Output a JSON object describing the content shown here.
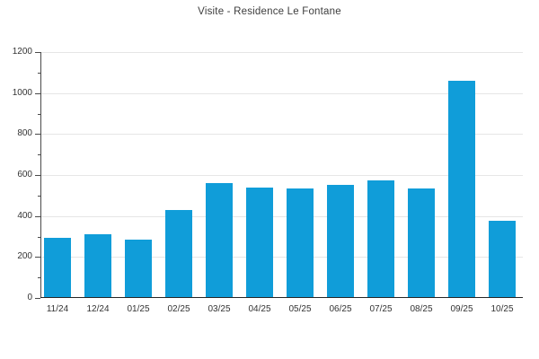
{
  "chart_data": {
    "type": "bar",
    "title": "Visite - Residence Le Fontane",
    "categories": [
      "11/24",
      "12/24",
      "01/25",
      "02/25",
      "03/25",
      "04/25",
      "05/25",
      "06/25",
      "07/25",
      "08/25",
      "09/25",
      "10/25"
    ],
    "values": [
      295,
      310,
      285,
      430,
      560,
      540,
      535,
      550,
      575,
      535,
      1060,
      375
    ],
    "xlabel": "",
    "ylabel": "",
    "ylim": [
      0,
      1200
    ],
    "ytick_step": 200,
    "ytick_minor_step": 100,
    "ytick_labels": [
      "0",
      "200",
      "400",
      "600",
      "800",
      "1000",
      "1200"
    ],
    "grid": "horizontal-major",
    "legend": false,
    "colors": {
      "bar": "#109dd9",
      "grid": "#e6e6e6",
      "axis": "#4a4a4a",
      "baseline": "#262626",
      "tick_text": "#333333",
      "title_text": "#3d3d3d",
      "background": "#ffffff"
    }
  }
}
